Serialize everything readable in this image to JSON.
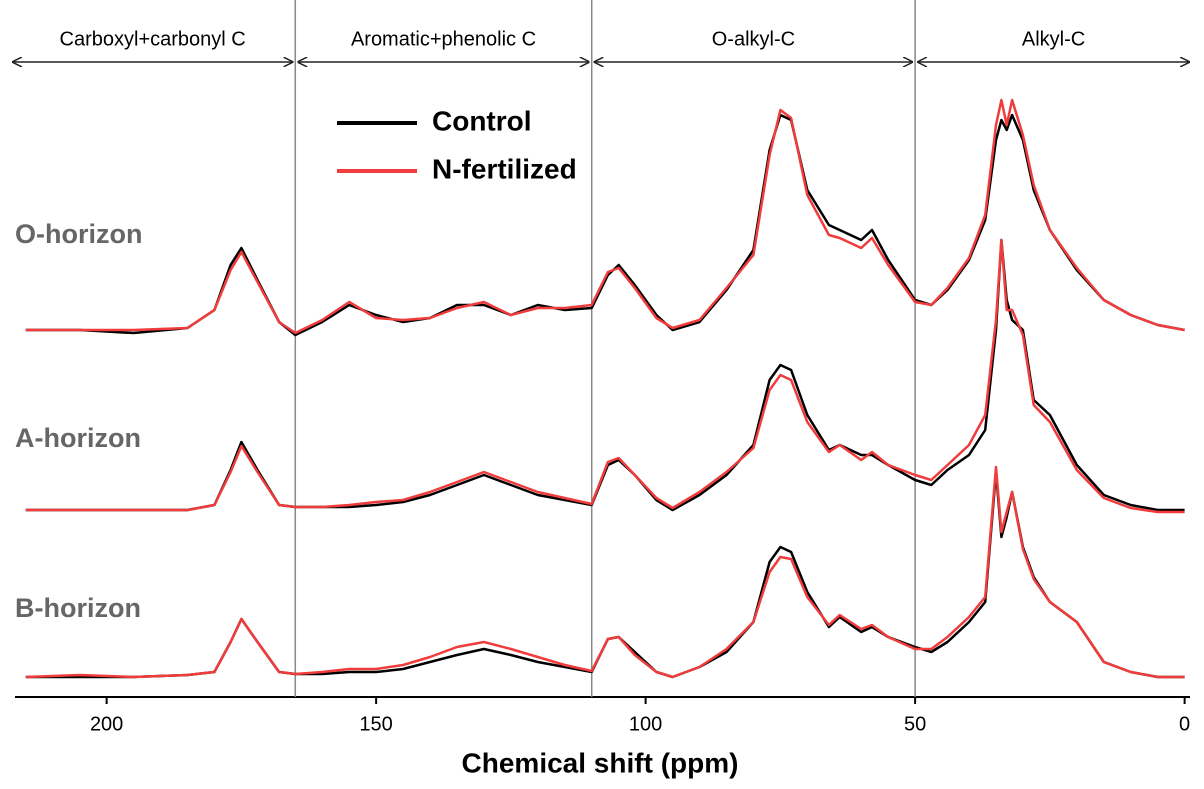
{
  "chart_data": {
    "type": "line",
    "x_label": "Chemical shift (ppm)",
    "xlim": [
      217,
      -1
    ],
    "xticks": [
      200,
      150,
      100,
      50,
      0
    ],
    "reversed_x": true,
    "dividers": [
      165,
      110,
      50
    ],
    "regions": [
      "Carboxyl+carbonyl C",
      "Aromatic+phenolic C",
      "O-alkyl-C",
      "Alkyl-C"
    ],
    "x": [
      215,
      205,
      195,
      185,
      180,
      177,
      175,
      172,
      168,
      165,
      160,
      155,
      150,
      145,
      140,
      135,
      130,
      125,
      120,
      115,
      110,
      107,
      105,
      102,
      98,
      95,
      90,
      85,
      80,
      77,
      75,
      73,
      70,
      66,
      64,
      60,
      58,
      55,
      50,
      47,
      44,
      40,
      37,
      35,
      34,
      33,
      32,
      30,
      28,
      25,
      20,
      15,
      10,
      5,
      0
    ],
    "groups": [
      {
        "label": "O-horizon",
        "series": [
          {
            "name": "Control",
            "color": "#000000",
            "values": [
              0,
              0,
              -3,
              2,
              20,
              65,
              82,
              50,
              8,
              -5,
              8,
              25,
              15,
              8,
              12,
              25,
              25,
              15,
              25,
              20,
              22,
              55,
              65,
              45,
              15,
              0,
              8,
              40,
              80,
              180,
              215,
              210,
              140,
              105,
              100,
              90,
              100,
              70,
              30,
              25,
              40,
              70,
              110,
              190,
              210,
              200,
              215,
              190,
              140,
              100,
              60,
              30,
              15,
              5,
              0
            ]
          },
          {
            "name": "N-fertilized",
            "color": "#f03c3c",
            "values": [
              0,
              0,
              0,
              2,
              20,
              60,
              78,
              48,
              8,
              -3,
              10,
              28,
              12,
              10,
              12,
              22,
              28,
              15,
              22,
              22,
              25,
              58,
              62,
              42,
              12,
              2,
              10,
              42,
              75,
              175,
              220,
              212,
              135,
              95,
              92,
              82,
              92,
              65,
              28,
              25,
              42,
              72,
              115,
              205,
              230,
              205,
              230,
              195,
              145,
              100,
              62,
              30,
              15,
              5,
              0
            ]
          }
        ]
      },
      {
        "label": "A-horizon",
        "series": [
          {
            "name": "Control",
            "color": "#000000",
            "values": [
              0,
              0,
              0,
              0,
              5,
              40,
              68,
              40,
              5,
              3,
              3,
              3,
              5,
              8,
              15,
              25,
              35,
              25,
              15,
              10,
              5,
              45,
              50,
              35,
              10,
              0,
              15,
              35,
              65,
              130,
              145,
              140,
              95,
              60,
              65,
              55,
              55,
              45,
              30,
              25,
              40,
              55,
              80,
              180,
              270,
              210,
              190,
              180,
              110,
              95,
              45,
              15,
              5,
              0,
              0
            ]
          },
          {
            "name": "N-fertilized",
            "color": "#f03c3c",
            "values": [
              0,
              0,
              0,
              0,
              5,
              38,
              64,
              38,
              5,
              3,
              3,
              5,
              8,
              10,
              18,
              28,
              38,
              28,
              18,
              12,
              6,
              48,
              52,
              35,
              12,
              2,
              18,
              38,
              62,
              120,
              135,
              130,
              88,
              58,
              65,
              50,
              58,
              45,
              35,
              30,
              45,
              65,
              95,
              190,
              270,
              200,
              200,
              175,
              105,
              88,
              40,
              12,
              2,
              -2,
              -2
            ]
          }
        ]
      },
      {
        "label": "B-horizon",
        "series": [
          {
            "name": "Control",
            "color": "#000000",
            "values": [
              0,
              0,
              0,
              2,
              5,
              35,
              58,
              35,
              5,
              3,
              3,
              5,
              5,
              8,
              15,
              22,
              28,
              22,
              15,
              10,
              5,
              38,
              40,
              25,
              5,
              0,
              10,
              25,
              55,
              115,
              130,
              125,
              85,
              50,
              60,
              45,
              50,
              40,
              30,
              25,
              35,
              55,
              75,
              205,
              140,
              160,
              185,
              130,
              100,
              75,
              55,
              15,
              5,
              0,
              0
            ]
          },
          {
            "name": "N-fertilized",
            "color": "#f03c3c",
            "values": [
              0,
              2,
              0,
              2,
              5,
              35,
              58,
              35,
              5,
              3,
              5,
              8,
              8,
              12,
              20,
              30,
              35,
              28,
              20,
              12,
              6,
              38,
              40,
              22,
              5,
              0,
              10,
              28,
              55,
              105,
              120,
              118,
              80,
              52,
              62,
              48,
              52,
              40,
              28,
              28,
              40,
              60,
              80,
              210,
              145,
              165,
              185,
              128,
              98,
              75,
              55,
              15,
              5,
              0,
              0
            ]
          }
        ]
      }
    ]
  }
}
